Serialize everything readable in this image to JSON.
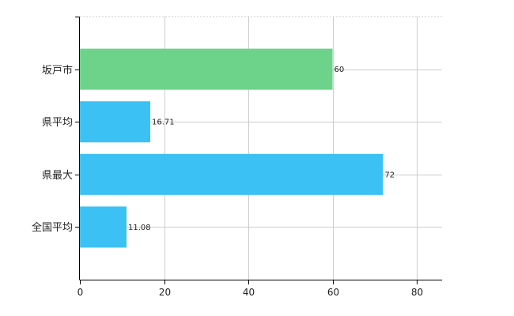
{
  "chart_data": {
    "type": "bar",
    "orientation": "horizontal",
    "categories": [
      "坂戸市",
      "県平均",
      "県最大",
      "全国平均"
    ],
    "values": [
      60,
      16.71,
      72,
      11.08
    ],
    "value_labels": [
      "60",
      "16.71",
      "72",
      "11.08"
    ],
    "bar_colors": [
      "#6ed38a",
      "#3cc1f5",
      "#3cc1f5",
      "#3cc1f5"
    ],
    "xlim": [
      0,
      86
    ],
    "xticks": [
      0,
      20,
      40,
      60,
      80
    ],
    "grid": true,
    "title": "",
    "xlabel": "",
    "ylabel": ""
  }
}
